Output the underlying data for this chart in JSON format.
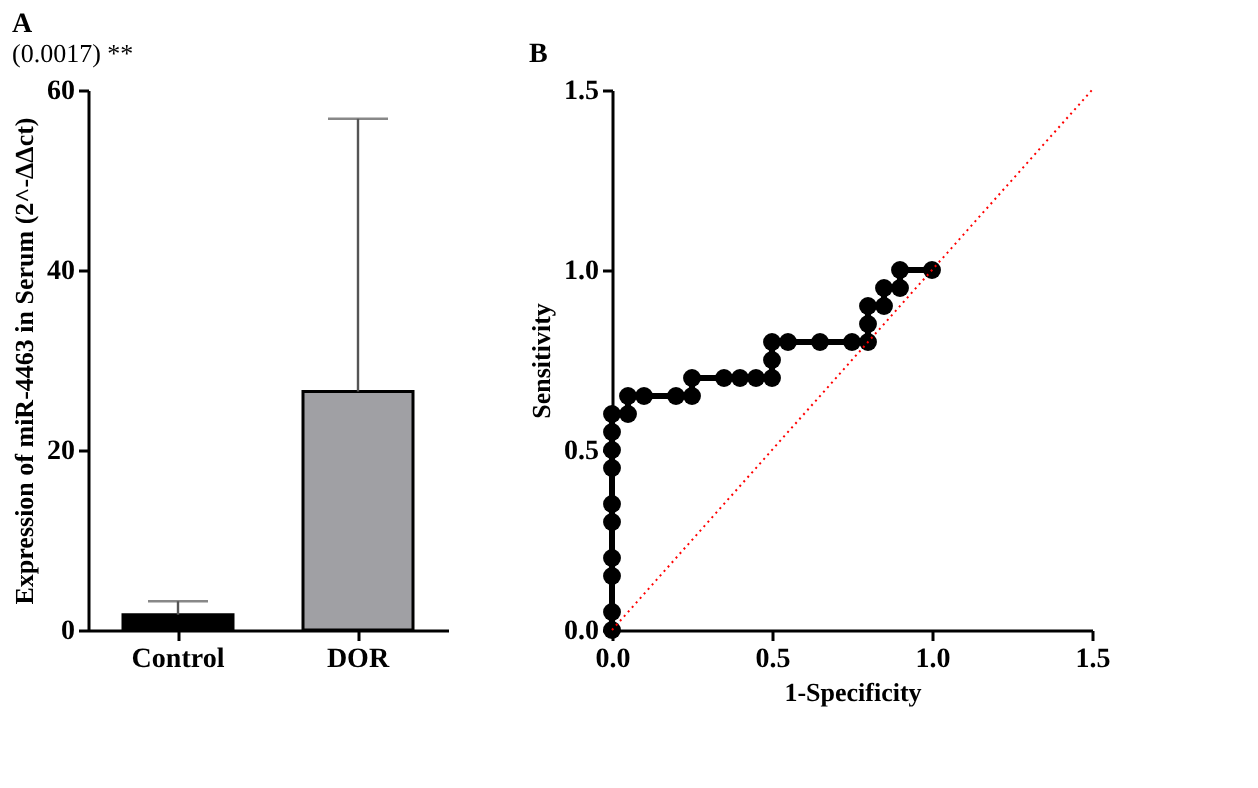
{
  "chart_data": [
    {
      "type": "bar",
      "title": "A",
      "ylabel": "Expression of miR-4463 in Serum (2^-ΔΔct)",
      "categories": [
        "Control",
        "DOR"
      ],
      "values": [
        1.7,
        26.5
      ],
      "colors": [
        "#000000",
        "#a0a0a4"
      ],
      "errors": [
        [
          1.7,
          3.2
        ],
        [
          26.5,
          56.8
        ]
      ],
      "ylim": [
        0,
        60
      ],
      "yticks": [
        0,
        20,
        40,
        60
      ],
      "annotations": [
        "(0.0017) **"
      ],
      "grid": false
    },
    {
      "type": "line",
      "title": "B",
      "xlabel": "1-Specificity",
      "ylabel": "Sensitivity",
      "xlim": [
        0,
        1.5
      ],
      "ylim": [
        0,
        1.5
      ],
      "xticks": [
        {
          "value": 0,
          "label": "0.0"
        },
        0.5,
        {
          "value": 1,
          "label": "1.0"
        },
        1.5
      ],
      "yticks": [
        {
          "value": 0,
          "label": "0.0"
        },
        0.5,
        {
          "value": 1,
          "label": "1.0"
        },
        1.5
      ],
      "grid": false,
      "series": [
        {
          "type": "line",
          "color": "#000000",
          "marker": "circle",
          "line_style": "solid",
          "x": [
            0,
            0,
            0,
            0,
            0,
            0,
            0,
            0,
            0,
            0,
            0.05,
            0.05,
            0.1,
            0.2,
            0.25,
            0.25,
            0.35,
            0.4,
            0.45,
            0.5,
            0.5,
            0.5,
            0.55,
            0.65,
            0.75,
            0.8,
            0.8,
            0.8,
            0.85,
            0.85,
            0.9,
            0.9,
            1.0
          ],
          "values": [
            0,
            0.05,
            0.15,
            0.2,
            0.3,
            0.35,
            0.45,
            0.5,
            0.55,
            0.6,
            0.6,
            0.65,
            0.65,
            0.65,
            0.65,
            0.7,
            0.7,
            0.7,
            0.7,
            0.7,
            0.75,
            0.8,
            0.8,
            0.8,
            0.8,
            0.8,
            0.85,
            0.9,
            0.9,
            0.95,
            0.95,
            1.0,
            1.0
          ]
        },
        {
          "type": "line",
          "color": "#ff0000",
          "marker": "none",
          "line_style": "dotted",
          "x": [
            0,
            1.5
          ],
          "values": [
            0,
            1.5
          ]
        }
      ]
    }
  ]
}
